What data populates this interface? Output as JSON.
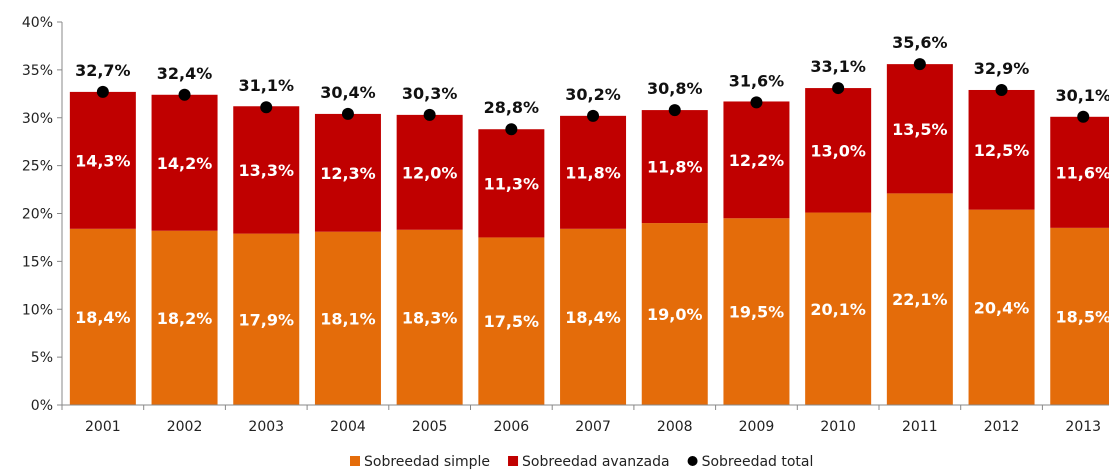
{
  "chart_data": {
    "type": "bar",
    "stacked": true,
    "categories": [
      "2001",
      "2002",
      "2003",
      "2004",
      "2005",
      "2006",
      "2007",
      "2008",
      "2009",
      "2010",
      "2011",
      "2012",
      "2013"
    ],
    "series": [
      {
        "name": "Sobreedad simple",
        "color": "#e46c0a",
        "values": [
          18.4,
          18.2,
          17.9,
          18.1,
          18.3,
          17.5,
          18.4,
          19.0,
          19.5,
          20.1,
          22.1,
          20.4,
          18.5
        ],
        "labels": [
          "18,4%",
          "18,2%",
          "17,9%",
          "18,1%",
          "18,3%",
          "17,5%",
          "18,4%",
          "19,0%",
          "19,5%",
          "20,1%",
          "22,1%",
          "20,4%",
          "18,5%"
        ]
      },
      {
        "name": "Sobreedad avanzada",
        "color": "#c00000",
        "values": [
          14.3,
          14.2,
          13.3,
          12.3,
          12.0,
          11.3,
          11.8,
          11.8,
          12.2,
          13.0,
          13.5,
          12.5,
          11.6
        ],
        "labels": [
          "14,3%",
          "14,2%",
          "13,3%",
          "12,3%",
          "12,0%",
          "11,3%",
          "11,8%",
          "11,8%",
          "12,2%",
          "13,0%",
          "13,5%",
          "12,5%",
          "11,6%"
        ]
      },
      {
        "name": "Sobreedad total",
        "type": "scatter",
        "color": "#000000",
        "values": [
          32.7,
          32.4,
          31.1,
          30.4,
          30.3,
          28.8,
          30.2,
          30.8,
          31.6,
          33.1,
          35.6,
          32.9,
          30.1
        ],
        "labels": [
          "32,7%",
          "32,4%",
          "31,1%",
          "30,4%",
          "30,3%",
          "28,8%",
          "30,2%",
          "30,8%",
          "31,6%",
          "33,1%",
          "35,6%",
          "32,9%",
          "30,1%"
        ]
      }
    ],
    "y_ticks": [
      0,
      5,
      10,
      15,
      20,
      25,
      30,
      35,
      40
    ],
    "y_tick_labels": [
      "0%",
      "5%",
      "10%",
      "15%",
      "20%",
      "25%",
      "30%",
      "35%",
      "40%"
    ],
    "ylim": [
      0,
      40
    ],
    "grid": false,
    "legend_position": "bottom"
  }
}
